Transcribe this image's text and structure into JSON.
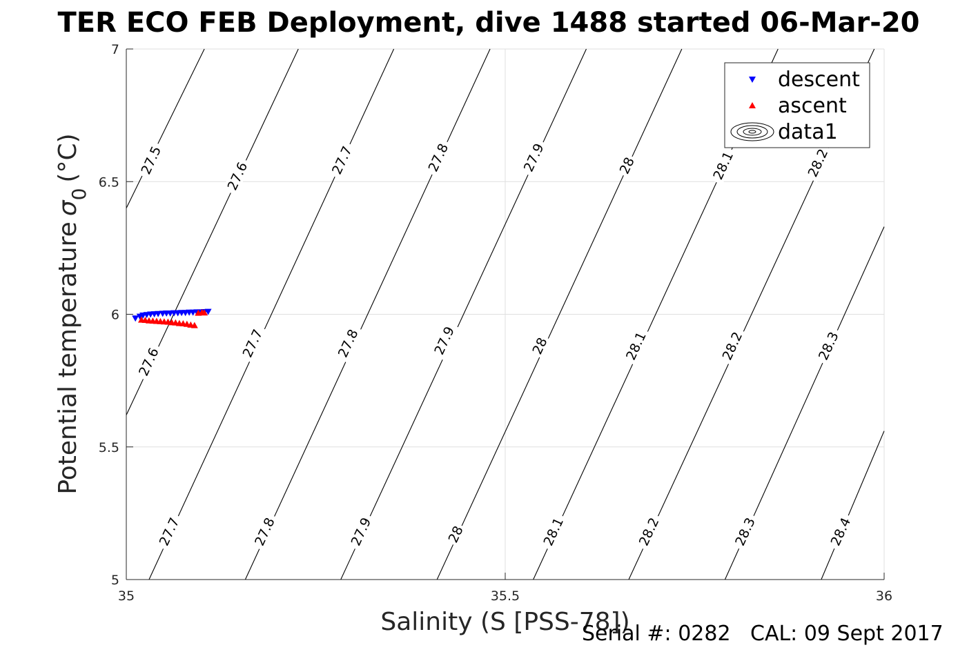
{
  "chart_data": {
    "type": "scatter",
    "title": "TER ECO FEB Deployment, dive 1488 started 06-Mar-20",
    "xlabel": "Salinity (S [PSS-78])",
    "ylabel": "Potential temperature",
    "ylabel_symbol": "σ",
    "ylabel_sub": "0",
    "ylabel_unit": "(°C)",
    "xlim": [
      35,
      36
    ],
    "ylim": [
      5,
      7
    ],
    "xticks": [
      "35",
      "35.5",
      "36"
    ],
    "yticks": [
      "5",
      "5.5",
      "6",
      "6.5",
      "7"
    ],
    "grid": true,
    "legend_position": "top-right",
    "series": [
      {
        "name": "descent",
        "marker": "triangle-down",
        "color": "#0000ff",
        "points": [
          [
            35.018,
            5.992
          ],
          [
            35.022,
            5.996
          ],
          [
            35.027,
            5.998
          ],
          [
            35.032,
            6.0
          ],
          [
            35.037,
            6.001
          ],
          [
            35.042,
            6.002
          ],
          [
            35.048,
            6.003
          ],
          [
            35.053,
            6.004
          ],
          [
            35.058,
            6.004
          ],
          [
            35.063,
            6.005
          ],
          [
            35.068,
            6.005
          ],
          [
            35.073,
            6.006
          ],
          [
            35.078,
            6.006
          ],
          [
            35.083,
            6.007
          ],
          [
            35.088,
            6.007
          ],
          [
            35.093,
            6.008
          ],
          [
            35.098,
            6.008
          ],
          [
            35.103,
            6.009
          ],
          [
            35.108,
            6.01
          ],
          [
            35.012,
            5.985
          ]
        ]
      },
      {
        "name": "ascent",
        "marker": "triangle-up",
        "color": "#ff0000",
        "points": [
          [
            35.02,
            5.979
          ],
          [
            35.025,
            5.978
          ],
          [
            35.03,
            5.976
          ],
          [
            35.035,
            5.975
          ],
          [
            35.04,
            5.974
          ],
          [
            35.045,
            5.973
          ],
          [
            35.05,
            5.972
          ],
          [
            35.055,
            5.971
          ],
          [
            35.06,
            5.969
          ],
          [
            35.065,
            5.968
          ],
          [
            35.07,
            5.966
          ],
          [
            35.075,
            5.965
          ],
          [
            35.08,
            5.963
          ],
          [
            35.085,
            5.96
          ],
          [
            35.09,
            5.958
          ],
          [
            35.095,
            6.005
          ],
          [
            35.1,
            6.007
          ],
          [
            35.103,
            6.006
          ]
        ]
      },
      {
        "name": "data1",
        "type": "contour",
        "color": "#000000",
        "levels": [
          27.5,
          27.6,
          27.7,
          27.8,
          27.9,
          28,
          28.1,
          28.2,
          28.3,
          28.4
        ],
        "lines": [
          {
            "level": 27.5,
            "points": [
              [
                35.0,
                6.4
              ],
              [
                35.103,
                7.0
              ]
            ]
          },
          {
            "level": 27.6,
            "points": [
              [
                35.0,
                5.62
              ],
              [
                35.227,
                7.0
              ]
            ]
          },
          {
            "level": 27.7,
            "points": [
              [
                35.03,
                5.0
              ],
              [
                35.353,
                7.0
              ]
            ]
          },
          {
            "level": 27.8,
            "points": [
              [
                35.157,
                5.0
              ],
              [
                35.48,
                7.0
              ]
            ]
          },
          {
            "level": 27.9,
            "points": [
              [
                35.283,
                5.0
              ],
              [
                35.607,
                7.0
              ]
            ]
          },
          {
            "level": 28,
            "points": [
              [
                35.41,
                5.0
              ],
              [
                35.733,
                7.0
              ]
            ]
          },
          {
            "level": 28.1,
            "points": [
              [
                35.537,
                5.0
              ],
              [
                35.86,
                7.0
              ]
            ]
          },
          {
            "level": 28.2,
            "points": [
              [
                35.663,
                5.0
              ],
              [
                35.987,
                7.0
              ]
            ]
          },
          {
            "level": 28.3,
            "points": [
              [
                35.79,
                5.0
              ],
              [
                36.0,
                6.33
              ]
            ]
          },
          {
            "level": 28.4,
            "points": [
              [
                35.917,
                5.0
              ],
              [
                36.0,
                5.56
              ]
            ]
          }
        ],
        "labels": [
          {
            "text": "27.5",
            "x": 35.033,
            "y": 6.58
          },
          {
            "text": "27.6",
            "x": 35.147,
            "y": 6.52
          },
          {
            "text": "27.7",
            "x": 35.285,
            "y": 6.58
          },
          {
            "text": "27.8",
            "x": 35.412,
            "y": 6.59
          },
          {
            "text": "27.9",
            "x": 35.538,
            "y": 6.59
          },
          {
            "text": "28",
            "x": 35.661,
            "y": 6.56
          },
          {
            "text": "28.1",
            "x": 35.788,
            "y": 6.56
          },
          {
            "text": "28.2",
            "x": 35.913,
            "y": 6.57
          },
          {
            "text": "27.6",
            "x": 35.03,
            "y": 5.82
          },
          {
            "text": "27.7",
            "x": 35.167,
            "y": 5.89
          },
          {
            "text": "27.8",
            "x": 35.293,
            "y": 5.89
          },
          {
            "text": "27.9",
            "x": 35.42,
            "y": 5.9
          },
          {
            "text": "28",
            "x": 35.546,
            "y": 5.88
          },
          {
            "text": "28.1",
            "x": 35.673,
            "y": 5.88
          },
          {
            "text": "28.2",
            "x": 35.8,
            "y": 5.88
          },
          {
            "text": "28.3",
            "x": 35.927,
            "y": 5.88
          },
          {
            "text": "27.7",
            "x": 35.057,
            "y": 5.18
          },
          {
            "text": "27.8",
            "x": 35.183,
            "y": 5.18
          },
          {
            "text": "27.9",
            "x": 35.31,
            "y": 5.18
          },
          {
            "text": "28",
            "x": 35.435,
            "y": 5.17
          },
          {
            "text": "28.1",
            "x": 35.564,
            "y": 5.18
          },
          {
            "text": "28.2",
            "x": 35.69,
            "y": 5.18
          },
          {
            "text": "28.3",
            "x": 35.817,
            "y": 5.18
          },
          {
            "text": "28.4",
            "x": 35.943,
            "y": 5.18
          }
        ]
      }
    ]
  },
  "footer": {
    "serial_label": "Serial #: 0282",
    "cal_label": "CAL: 09 Sept 2017"
  }
}
